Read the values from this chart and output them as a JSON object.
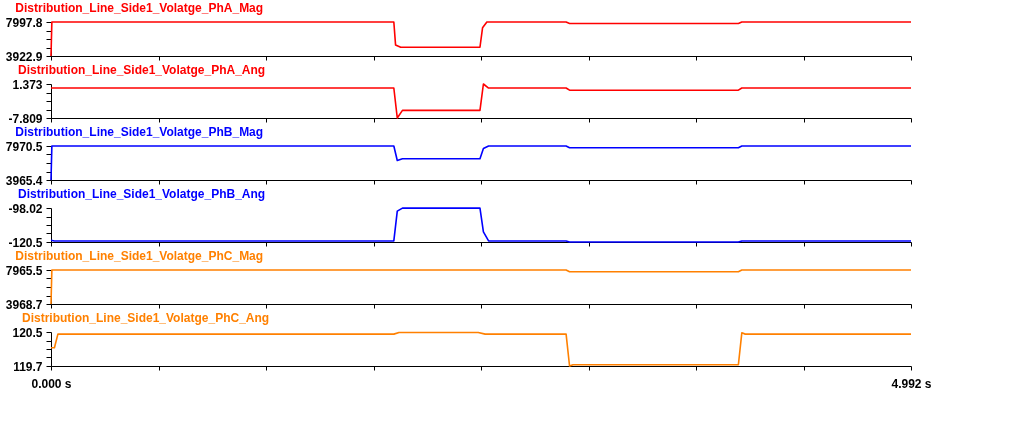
{
  "chart_data": [
    {
      "type": "line",
      "xlim": [
        0,
        4.992
      ],
      "xticks": [
        {
          "value": 0,
          "label": null
        },
        {
          "value": 0.624,
          "label": null
        },
        {
          "value": 1.248,
          "label": null
        },
        {
          "value": 1.872,
          "label": null
        },
        {
          "value": 2.496,
          "label": null
        },
        {
          "value": 3.12,
          "label": null
        },
        {
          "value": 3.744,
          "label": null
        },
        {
          "value": 4.368,
          "label": null
        },
        {
          "value": 4.992,
          "label": null
        }
      ],
      "ylim": [
        3922.9,
        7997.8
      ],
      "yticks": [
        3922.9,
        {
          "value": 4941.625,
          "label": null
        },
        {
          "value": 5960.35,
          "label": null
        },
        {
          "value": 6979.075,
          "label": null
        },
        7997.8
      ],
      "tick_labels": "y",
      "grid": false,
      "legend": false,
      "marker": "none",
      "line_style": "solid",
      "series": [
        {
          "name": "Distribution_Line_Side1_Volatge_PhA_Mag",
          "color": "#ff0000",
          "x": [
            0,
            0.005,
            1.99,
            2.0,
            2.03,
            2.49,
            2.505,
            2.53,
            2.99,
            3.01,
            3.99,
            4.01,
            4.992
          ],
          "values": [
            3922.9,
            7997.8,
            7997.8,
            5250,
            4972,
            4972,
            7300,
            7997.8,
            7997.8,
            7825,
            7825,
            7997.8,
            7997.8
          ]
        }
      ]
    },
    {
      "type": "line",
      "xlim": [
        0,
        4.992
      ],
      "xticks": [
        {
          "value": 0,
          "label": null
        },
        {
          "value": 0.624,
          "label": null
        },
        {
          "value": 1.248,
          "label": null
        },
        {
          "value": 1.872,
          "label": null
        },
        {
          "value": 2.496,
          "label": null
        },
        {
          "value": 3.12,
          "label": null
        },
        {
          "value": 3.744,
          "label": null
        },
        {
          "value": 4.368,
          "label": null
        },
        {
          "value": 4.992,
          "label": null
        }
      ],
      "ylim": [
        -7.809,
        1.373
      ],
      "yticks": [
        -7.809,
        {
          "value": -5.5135,
          "label": null
        },
        {
          "value": -3.218,
          "label": null
        },
        {
          "value": -0.9225,
          "label": null
        },
        1.373
      ],
      "tick_labels": "y",
      "grid": false,
      "legend": false,
      "marker": "none",
      "line_style": "solid",
      "series": [
        {
          "name": "Distribution_Line_Side1_Volatge_PhA_Ang",
          "color": "#ff0000",
          "x": [
            0,
            1.99,
            2.01,
            2.04,
            2.49,
            2.51,
            2.54,
            2.99,
            3.01,
            3.99,
            4.01,
            4.992
          ],
          "values": [
            0.29,
            0.29,
            -7.809,
            -5.75,
            -5.75,
            1.373,
            0.29,
            0.29,
            -0.3,
            -0.3,
            0.29,
            0.29
          ]
        }
      ]
    },
    {
      "type": "line",
      "xlim": [
        0,
        4.992
      ],
      "xticks": [
        {
          "value": 0,
          "label": null
        },
        {
          "value": 0.624,
          "label": null
        },
        {
          "value": 1.248,
          "label": null
        },
        {
          "value": 1.872,
          "label": null
        },
        {
          "value": 2.496,
          "label": null
        },
        {
          "value": 3.12,
          "label": null
        },
        {
          "value": 3.744,
          "label": null
        },
        {
          "value": 4.368,
          "label": null
        },
        {
          "value": 4.992,
          "label": null
        }
      ],
      "ylim": [
        3965.4,
        7970.5
      ],
      "yticks": [
        3965.4,
        {
          "value": 4966.675,
          "label": null
        },
        {
          "value": 5967.95,
          "label": null
        },
        {
          "value": 6969.225,
          "label": null
        },
        7970.5
      ],
      "tick_labels": "y",
      "grid": false,
      "legend": false,
      "marker": "none",
      "line_style": "solid",
      "series": [
        {
          "name": "Distribution_Line_Side1_Volatge_PhB_Mag",
          "color": "#0000ff",
          "x": [
            0,
            0.005,
            1.99,
            2.01,
            2.04,
            2.49,
            2.51,
            2.54,
            2.99,
            3.01,
            3.99,
            4.01,
            4.992
          ],
          "values": [
            3965.4,
            7970.5,
            7970.5,
            6268,
            6469,
            6469,
            7670,
            7970.5,
            7970.5,
            7770,
            7770,
            7970.5,
            7970.5
          ]
        }
      ]
    },
    {
      "type": "line",
      "xlim": [
        0,
        4.992
      ],
      "xticks": [
        {
          "value": 0,
          "label": null
        },
        {
          "value": 0.624,
          "label": null
        },
        {
          "value": 1.248,
          "label": null
        },
        {
          "value": 1.872,
          "label": null
        },
        {
          "value": 2.496,
          "label": null
        },
        {
          "value": 3.12,
          "label": null
        },
        {
          "value": 3.744,
          "label": null
        },
        {
          "value": 4.368,
          "label": null
        },
        {
          "value": 4.992,
          "label": null
        }
      ],
      "ylim": [
        -120.5,
        -98.02
      ],
      "yticks": [
        -120.5,
        {
          "value": -114.88,
          "label": null
        },
        {
          "value": -109.26,
          "label": null
        },
        {
          "value": -103.64,
          "label": null
        },
        -98.02
      ],
      "tick_labels": "y",
      "grid": false,
      "legend": false,
      "marker": "none",
      "line_style": "solid",
      "series": [
        {
          "name": "Distribution_Line_Side1_Volatge_PhB_Ang",
          "color": "#0000ff",
          "x": [
            0,
            0.02,
            1.99,
            2.01,
            2.04,
            2.49,
            2.51,
            2.54,
            2.99,
            3.01,
            3.99,
            4.01,
            4.992
          ],
          "values": [
            -119.3,
            -119.8,
            -119.8,
            -100.1,
            -98.1,
            -98.1,
            -113.8,
            -119.8,
            -119.8,
            -120.5,
            -120.5,
            -119.8,
            -119.8
          ]
        }
      ]
    },
    {
      "type": "line",
      "xlim": [
        0,
        4.992
      ],
      "xticks": [
        {
          "value": 0,
          "label": null
        },
        {
          "value": 0.624,
          "label": null
        },
        {
          "value": 1.248,
          "label": null
        },
        {
          "value": 1.872,
          "label": null
        },
        {
          "value": 2.496,
          "label": null
        },
        {
          "value": 3.12,
          "label": null
        },
        {
          "value": 3.744,
          "label": null
        },
        {
          "value": 4.368,
          "label": null
        },
        {
          "value": 4.992,
          "label": null
        }
      ],
      "ylim": [
        3968.7,
        7965.5
      ],
      "yticks": [
        3968.7,
        {
          "value": 4967.9,
          "label": null
        },
        {
          "value": 5967.1,
          "label": null
        },
        {
          "value": 6966.3,
          "label": null
        },
        7965.5
      ],
      "tick_labels": "y",
      "grid": false,
      "legend": false,
      "marker": "none",
      "line_style": "solid",
      "series": [
        {
          "name": "Distribution_Line_Side1_Volatge_PhC_Mag",
          "color": "#ff8000",
          "x": [
            0,
            0.005,
            2.99,
            3.01,
            3.99,
            4.01,
            4.992
          ],
          "values": [
            3968.7,
            7965.5,
            7965.5,
            7766,
            7766,
            7965.5,
            7965.5
          ]
        }
      ]
    },
    {
      "type": "line",
      "xlim": [
        0,
        4.992
      ],
      "xticks": [
        {
          "value": 0,
          "label": "0.000 s"
        },
        {
          "value": 0.624,
          "label": null
        },
        {
          "value": 1.248,
          "label": null
        },
        {
          "value": 1.872,
          "label": null
        },
        {
          "value": 2.496,
          "label": null
        },
        {
          "value": 3.12,
          "label": null
        },
        {
          "value": 3.744,
          "label": null
        },
        {
          "value": 4.368,
          "label": null
        },
        {
          "value": 4.992,
          "label": "4.992 s"
        }
      ],
      "ylim": [
        119.7,
        120.5
      ],
      "yticks": [
        119.7,
        {
          "value": 119.9,
          "label": null
        },
        {
          "value": 120.1,
          "label": null
        },
        {
          "value": 120.3,
          "label": null
        },
        120.5
      ],
      "grid": false,
      "legend": false,
      "marker": "none",
      "line_style": "solid",
      "series": [
        {
          "name": "Distribution_Line_Side1_Volatge_PhC_Ang",
          "color": "#ff8000",
          "x": [
            0,
            0.02,
            0.04,
            1.99,
            2.02,
            2.48,
            2.52,
            2.99,
            3.01,
            3.03,
            3.99,
            4.01,
            4.03,
            4.992
          ],
          "values": [
            120.13,
            120.13,
            120.45,
            120.45,
            120.49,
            120.49,
            120.45,
            120.45,
            119.7,
            119.73,
            119.73,
            120.48,
            120.45,
            120.45
          ]
        }
      ]
    }
  ]
}
